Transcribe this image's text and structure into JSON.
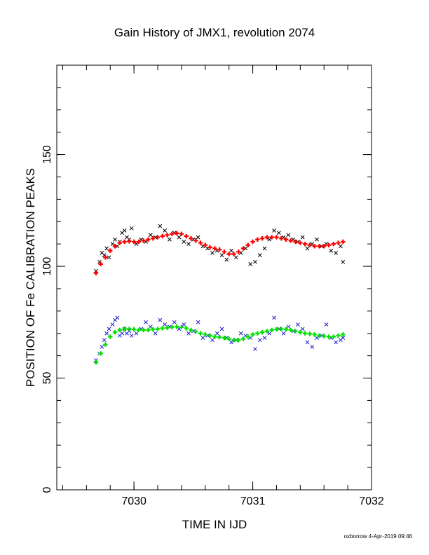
{
  "chart_data": {
    "type": "scatter",
    "title": "Gain History of JMX1, revolution 2074",
    "xlabel": "TIME IN IJD",
    "ylabel": "POSITION OF Fe CALIBRATION PEAKS",
    "xlim": [
      7029.35,
      7032.0
    ],
    "ylim": [
      0,
      190
    ],
    "xticks": [
      {
        "value": 7030,
        "label": "7030"
      },
      {
        "value": 7031,
        "label": "7031"
      },
      {
        "value": 7032,
        "label": "7032"
      }
    ],
    "yticks": [
      {
        "value": 0,
        "label": "0"
      },
      {
        "value": 50,
        "label": "50"
      },
      {
        "value": 100,
        "label": "100"
      },
      {
        "value": 150,
        "label": "150"
      }
    ],
    "grid": false,
    "legend": "none",
    "footer": "oxborrow  4-Apr-2019 09:46",
    "series": [
      {
        "marker": "x",
        "color": "#000000",
        "x": [
          7029.68,
          7029.71,
          7029.73,
          7029.75,
          7029.77,
          7029.79,
          7029.82,
          7029.84,
          7029.86,
          7029.88,
          7029.9,
          7029.92,
          7029.94,
          7029.96,
          7029.98,
          7030.02,
          7030.06,
          7030.1,
          7030.14,
          7030.18,
          7030.22,
          7030.26,
          7030.3,
          7030.34,
          7030.38,
          7030.42,
          7030.46,
          7030.5,
          7030.54,
          7030.58,
          7030.62,
          7030.66,
          7030.7,
          7030.74,
          7030.78,
          7030.82,
          7030.86,
          7030.9,
          7030.94,
          7030.98,
          7031.02,
          7031.06,
          7031.1,
          7031.14,
          7031.18,
          7031.22,
          7031.26,
          7031.3,
          7031.34,
          7031.38,
          7031.42,
          7031.46,
          7031.5,
          7031.54,
          7031.58,
          7031.62,
          7031.66,
          7031.7,
          7031.74,
          7031.76
        ],
        "y": [
          98,
          102,
          106,
          105,
          108,
          104,
          110,
          112,
          109,
          111,
          115,
          116,
          113,
          112,
          117,
          110,
          112,
          111,
          114,
          113,
          118,
          116,
          112,
          115,
          113,
          111,
          110,
          112,
          113,
          109,
          108,
          106,
          107,
          105,
          103,
          107,
          104,
          106,
          108,
          101,
          102,
          105,
          108,
          112,
          116,
          115,
          113,
          114,
          112,
          111,
          113,
          108,
          110,
          112,
          109,
          110,
          107,
          106,
          109,
          102
        ]
      },
      {
        "marker": "x",
        "color": "#1f1fd6",
        "x": [
          7029.68,
          7029.71,
          7029.73,
          7029.75,
          7029.77,
          7029.79,
          7029.82,
          7029.84,
          7029.86,
          7029.88,
          7029.9,
          7029.92,
          7029.94,
          7029.96,
          7029.98,
          7030.02,
          7030.06,
          7030.1,
          7030.14,
          7030.18,
          7030.22,
          7030.26,
          7030.3,
          7030.34,
          7030.38,
          7030.42,
          7030.46,
          7030.5,
          7030.54,
          7030.58,
          7030.62,
          7030.66,
          7030.7,
          7030.74,
          7030.78,
          7030.82,
          7030.86,
          7030.9,
          7030.94,
          7030.98,
          7031.02,
          7031.06,
          7031.1,
          7031.14,
          7031.18,
          7031.22,
          7031.26,
          7031.3,
          7031.34,
          7031.38,
          7031.42,
          7031.46,
          7031.5,
          7031.54,
          7031.58,
          7031.62,
          7031.66,
          7031.7,
          7031.74,
          7031.76
        ],
        "y": [
          58,
          61,
          64,
          67,
          70,
          72,
          74,
          76,
          77,
          69,
          70,
          72,
          70,
          71,
          69,
          70,
          72,
          75,
          73,
          70,
          76,
          74,
          73,
          75,
          72,
          74,
          70,
          71,
          75,
          68,
          69,
          67,
          70,
          72,
          68,
          66,
          67,
          70,
          69,
          68,
          63,
          67,
          68,
          70,
          77,
          72,
          70,
          73,
          71,
          74,
          72,
          66,
          64,
          68,
          69,
          74,
          68,
          66,
          67,
          68
        ]
      },
      {
        "marker": "+",
        "color": "#ff0000",
        "x": [
          7029.68,
          7029.72,
          7029.76,
          7029.8,
          7029.84,
          7029.88,
          7029.92,
          7029.96,
          7030.0,
          7030.04,
          7030.08,
          7030.12,
          7030.16,
          7030.2,
          7030.24,
          7030.28,
          7030.32,
          7030.36,
          7030.4,
          7030.44,
          7030.48,
          7030.52,
          7030.56,
          7030.6,
          7030.64,
          7030.68,
          7030.72,
          7030.76,
          7030.8,
          7030.84,
          7030.88,
          7030.92,
          7030.96,
          7031.0,
          7031.04,
          7031.08,
          7031.12,
          7031.16,
          7031.2,
          7031.24,
          7031.28,
          7031.32,
          7031.36,
          7031.4,
          7031.44,
          7031.48,
          7031.52,
          7031.56,
          7031.6,
          7031.64,
          7031.68,
          7031.72,
          7031.76
        ],
        "y": [
          97,
          101,
          104,
          107,
          109,
          110.5,
          111,
          111.2,
          111,
          111,
          111.5,
          112,
          112.5,
          113,
          113.5,
          114,
          114.5,
          114.8,
          114.5,
          113.5,
          112.5,
          111.5,
          110.5,
          109.5,
          108.5,
          108,
          107.5,
          106.5,
          105.5,
          105.5,
          106.5,
          108,
          109.5,
          111,
          112,
          112.5,
          113,
          113,
          113,
          112.5,
          112,
          111.5,
          111,
          110.5,
          110,
          109.5,
          109,
          109,
          109,
          109.5,
          110,
          110.5,
          111
        ]
      },
      {
        "marker": "+",
        "color": "#00e000",
        "x": [
          7029.68,
          7029.72,
          7029.76,
          7029.8,
          7029.84,
          7029.88,
          7029.92,
          7029.96,
          7030.0,
          7030.04,
          7030.08,
          7030.12,
          7030.16,
          7030.2,
          7030.24,
          7030.28,
          7030.32,
          7030.36,
          7030.4,
          7030.44,
          7030.48,
          7030.52,
          7030.56,
          7030.6,
          7030.64,
          7030.68,
          7030.72,
          7030.76,
          7030.8,
          7030.84,
          7030.88,
          7030.92,
          7030.96,
          7031.0,
          7031.04,
          7031.08,
          7031.12,
          7031.16,
          7031.2,
          7031.24,
          7031.28,
          7031.32,
          7031.36,
          7031.4,
          7031.44,
          7031.48,
          7031.52,
          7031.56,
          7031.6,
          7031.64,
          7031.68,
          7031.72,
          7031.76
        ],
        "y": [
          57,
          61,
          65,
          68.5,
          70.5,
          71.5,
          72,
          72,
          71.8,
          71.5,
          71.5,
          71.5,
          71.8,
          72,
          72.3,
          72.5,
          72.8,
          73,
          72.8,
          72.3,
          71.5,
          70.8,
          70,
          69.5,
          69,
          68.5,
          68.3,
          68,
          67.5,
          67,
          67,
          67.5,
          68.5,
          69.5,
          70,
          70.5,
          71,
          71.5,
          71.8,
          72,
          71.8,
          71.5,
          71,
          70.5,
          70,
          69.8,
          69.5,
          69,
          68.8,
          68.5,
          68.5,
          69,
          69.5
        ]
      }
    ]
  }
}
